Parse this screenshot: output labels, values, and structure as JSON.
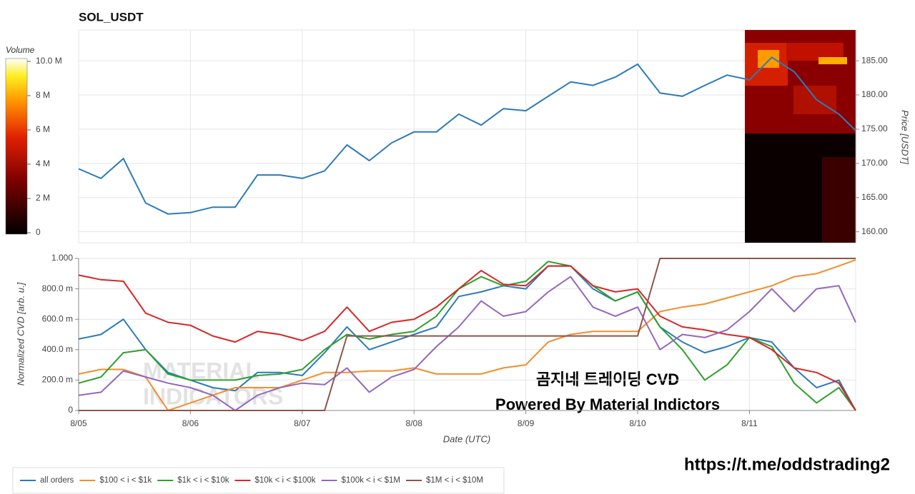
{
  "chart_data": [
    {
      "type": "line",
      "title": "SOL_USDT",
      "ylabel": "Price [USDT]",
      "x": [
        0,
        0.2,
        0.4,
        0.6,
        0.8,
        1.0,
        1.2,
        1.4,
        1.6,
        1.8,
        2.0,
        2.2,
        2.4,
        2.6,
        2.8,
        3.0,
        3.2,
        3.4,
        3.6,
        3.8,
        4.0,
        4.2,
        4.4,
        4.6,
        4.8,
        5.0,
        5.2,
        5.4,
        5.6,
        5.8,
        6.0,
        6.2,
        6.4,
        6.6,
        6.8,
        6.95
      ],
      "values": [
        169.2,
        167.8,
        170.7,
        164.2,
        162.6,
        162.8,
        163.6,
        163.6,
        168.3,
        168.3,
        167.8,
        168.9,
        172.7,
        170.4,
        173.0,
        174.6,
        174.6,
        177.2,
        175.6,
        178.0,
        177.7,
        179.8,
        181.9,
        181.4,
        182.6,
        184.5,
        180.3,
        179.8,
        181.4,
        182.9,
        182.2,
        185.5,
        183.4,
        179.3,
        177.2,
        174.8
      ],
      "color": "#2b7bb9",
      "xlim": [
        0,
        6.95
      ],
      "ylim": [
        158.4,
        189.5
      ],
      "yticks": [
        {
          "value": 160,
          "label": "160.00"
        },
        {
          "value": 165,
          "label": "165.00"
        },
        {
          "value": 170,
          "label": "170.00"
        },
        {
          "value": 175,
          "label": "175.00"
        },
        {
          "value": 180,
          "label": "180.00"
        },
        {
          "value": 185,
          "label": "185.00"
        }
      ],
      "grid": true,
      "colorbar": {
        "label": "Volume",
        "lim": [
          0,
          10000000
        ],
        "ticks": [
          0,
          {
            "value": 2000000,
            "label": "2 M"
          },
          {
            "value": 4000000,
            "label": "4 M"
          },
          {
            "value": 6000000,
            "label": "6 M"
          },
          {
            "value": 8000000,
            "label": "8 M"
          },
          {
            "value": 10000000,
            "label": "10.0 M"
          }
        ]
      }
    },
    {
      "type": "line",
      "xlabel": "Date (UTC)",
      "ylabel": "Normalized CVD [arb. u.]",
      "x": [
        0,
        0.2,
        0.4,
        0.6,
        0.8,
        1.0,
        1.2,
        1.4,
        1.6,
        1.8,
        2.0,
        2.2,
        2.4,
        2.6,
        2.8,
        3.0,
        3.2,
        3.4,
        3.6,
        3.8,
        4.0,
        4.2,
        4.4,
        4.6,
        4.8,
        5.0,
        5.2,
        5.4,
        5.6,
        5.8,
        6.0,
        6.2,
        6.4,
        6.6,
        6.8,
        6.95
      ],
      "xlim": [
        0,
        6.95
      ],
      "xticks": [
        {
          "value": 0,
          "label": "8/05"
        },
        {
          "value": 1,
          "label": "8/06"
        },
        {
          "value": 2,
          "label": "8/07"
        },
        {
          "value": 3,
          "label": "8/08"
        },
        {
          "value": 4,
          "label": "8/09"
        },
        {
          "value": 5,
          "label": "8/10"
        },
        {
          "value": 6,
          "label": "8/11"
        }
      ],
      "ylim": [
        0,
        1
      ],
      "yticks": [
        0,
        {
          "value": 0.2,
          "label": "200.0 m"
        },
        {
          "value": 0.4,
          "label": "400.0 m"
        },
        {
          "value": 0.6,
          "label": "600.0 m"
        },
        {
          "value": 0.8,
          "label": "800.0 m"
        },
        {
          "value": 1,
          "label": "1.000"
        }
      ],
      "grid": true,
      "legend": "bottom",
      "series": [
        {
          "name": "all orders",
          "color": "#2b7bb9",
          "values": [
            0.47,
            0.5,
            0.6,
            0.4,
            0.25,
            0.2,
            0.15,
            0.13,
            0.25,
            0.25,
            0.23,
            0.38,
            0.55,
            0.4,
            0.45,
            0.5,
            0.55,
            0.75,
            0.78,
            0.82,
            0.8,
            0.95,
            0.95,
            0.8,
            0.72,
            0.78,
            0.55,
            0.45,
            0.38,
            0.42,
            0.48,
            0.45,
            0.28,
            0.15,
            0.2,
            0.0
          ]
        },
        {
          "name": "$100 < i < $1k",
          "color": "#f28e2b",
          "values": [
            0.24,
            0.27,
            0.27,
            0.22,
            0.0,
            0.05,
            0.1,
            0.15,
            0.15,
            0.15,
            0.2,
            0.25,
            0.25,
            0.26,
            0.26,
            0.28,
            0.24,
            0.24,
            0.24,
            0.28,
            0.3,
            0.45,
            0.5,
            0.52,
            0.52,
            0.52,
            0.65,
            0.68,
            0.7,
            0.74,
            0.78,
            0.82,
            0.88,
            0.9,
            0.95,
            0.99
          ]
        },
        {
          "name": "$1k < i < $10k",
          "color": "#2ca02c",
          "values": [
            0.18,
            0.22,
            0.38,
            0.4,
            0.24,
            0.2,
            0.2,
            0.2,
            0.23,
            0.24,
            0.27,
            0.4,
            0.5,
            0.47,
            0.5,
            0.52,
            0.62,
            0.8,
            0.88,
            0.82,
            0.85,
            0.98,
            0.95,
            0.82,
            0.72,
            0.78,
            0.55,
            0.4,
            0.2,
            0.3,
            0.48,
            0.42,
            0.18,
            0.05,
            0.15,
            0.0
          ]
        },
        {
          "name": "$10k < i < $100k",
          "color": "#d62728",
          "values": [
            0.89,
            0.86,
            0.85,
            0.64,
            0.58,
            0.56,
            0.49,
            0.45,
            0.52,
            0.5,
            0.46,
            0.52,
            0.68,
            0.52,
            0.58,
            0.6,
            0.68,
            0.8,
            0.92,
            0.83,
            0.82,
            0.95,
            0.95,
            0.82,
            0.78,
            0.8,
            0.62,
            0.55,
            0.53,
            0.5,
            0.48,
            0.4,
            0.28,
            0.25,
            0.18,
            0.0
          ]
        },
        {
          "name": "$100k < i < $1M",
          "color": "#9467bd",
          "values": [
            0.1,
            0.12,
            0.26,
            0.22,
            0.18,
            0.15,
            0.1,
            0.0,
            0.1,
            0.15,
            0.18,
            0.17,
            0.28,
            0.12,
            0.22,
            0.27,
            0.42,
            0.55,
            0.72,
            0.62,
            0.65,
            0.78,
            0.88,
            0.68,
            0.62,
            0.68,
            0.4,
            0.5,
            0.48,
            0.53,
            0.65,
            0.8,
            0.65,
            0.8,
            0.82,
            0.58
          ]
        },
        {
          "name": "$1M < i < $10M",
          "color": "#8c564b",
          "values": [
            0,
            0,
            0,
            0,
            0,
            0,
            0,
            0,
            0,
            0,
            0,
            0,
            0.49,
            0.49,
            0.49,
            0.49,
            0.49,
            0.49,
            0.49,
            0.49,
            0.49,
            0.49,
            0.49,
            0.49,
            0.49,
            0.49,
            1.0,
            1.0,
            1.0,
            1.0,
            1.0,
            1.0,
            1.0,
            1.0,
            1.0,
            1.0
          ]
        }
      ]
    }
  ],
  "watermark": [
    "MATERIAL",
    "INDICATORS"
  ],
  "annotations": [
    "곰지네 트레이딩 CVD",
    "Powered By Material Indictors",
    "https://t.me/oddstrading2"
  ]
}
